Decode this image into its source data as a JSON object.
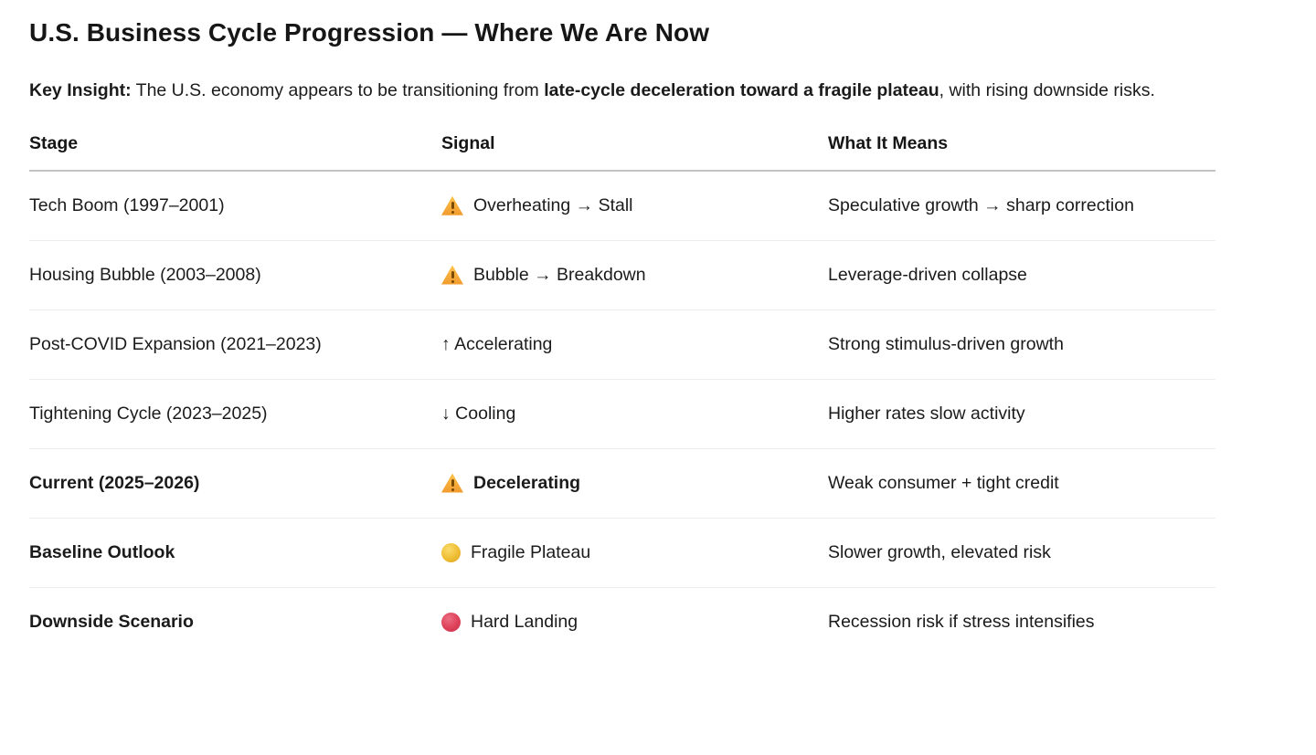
{
  "page": {
    "title": "U.S. Business Cycle Progression — Where We Are Now",
    "key_insight": {
      "label": "Key Insight:",
      "text_before": " The U.S. economy appears to be transitioning from ",
      "bold_text": "late-cycle deceleration toward a fragile plateau",
      "text_after": ", with rising downside risks."
    }
  },
  "table": {
    "headers": [
      "Stage",
      "Signal",
      "What It Means"
    ],
    "rows": [
      {
        "stage": "Tech Boom (1997–2001)",
        "icon": "warning",
        "signal": "Overheating → Stall",
        "meaning": "Speculative growth → sharp correction"
      },
      {
        "stage": "Housing Bubble (2003–2008)",
        "icon": "warning",
        "signal": "Bubble → Breakdown",
        "meaning": "Leverage-driven collapse"
      },
      {
        "stage": "Post-COVID Expansion (2021–2023)",
        "icon": "none",
        "signal": "↑ Accelerating",
        "meaning": "Strong stimulus-driven growth"
      },
      {
        "stage": "Tightening Cycle (2023–2025)",
        "icon": "none",
        "signal": "↓ Cooling",
        "meaning": "Higher rates slow activity"
      },
      {
        "stage": "Current (2025–2026)",
        "icon": "warning",
        "signal": "Decelerating",
        "meaning": "Weak consumer + tight credit"
      },
      {
        "stage": "Baseline Outlook",
        "icon": "circle-yellow",
        "signal": "Fragile Plateau",
        "meaning": "Slower growth, elevated risk"
      },
      {
        "stage": "Downside Scenario",
        "icon": "circle-red",
        "signal": "Hard Landing",
        "meaning": "Recession risk if stress intensifies"
      }
    ]
  },
  "colors": {
    "text": "#1b1b1b",
    "header_divider": "#c3c3c3",
    "row_divider": "#ededed",
    "warning_orange": "#f09a2d",
    "warning_exclamation": "#7a4a00",
    "circle_yellow": "#efbd33",
    "circle_red": "#de4059"
  }
}
